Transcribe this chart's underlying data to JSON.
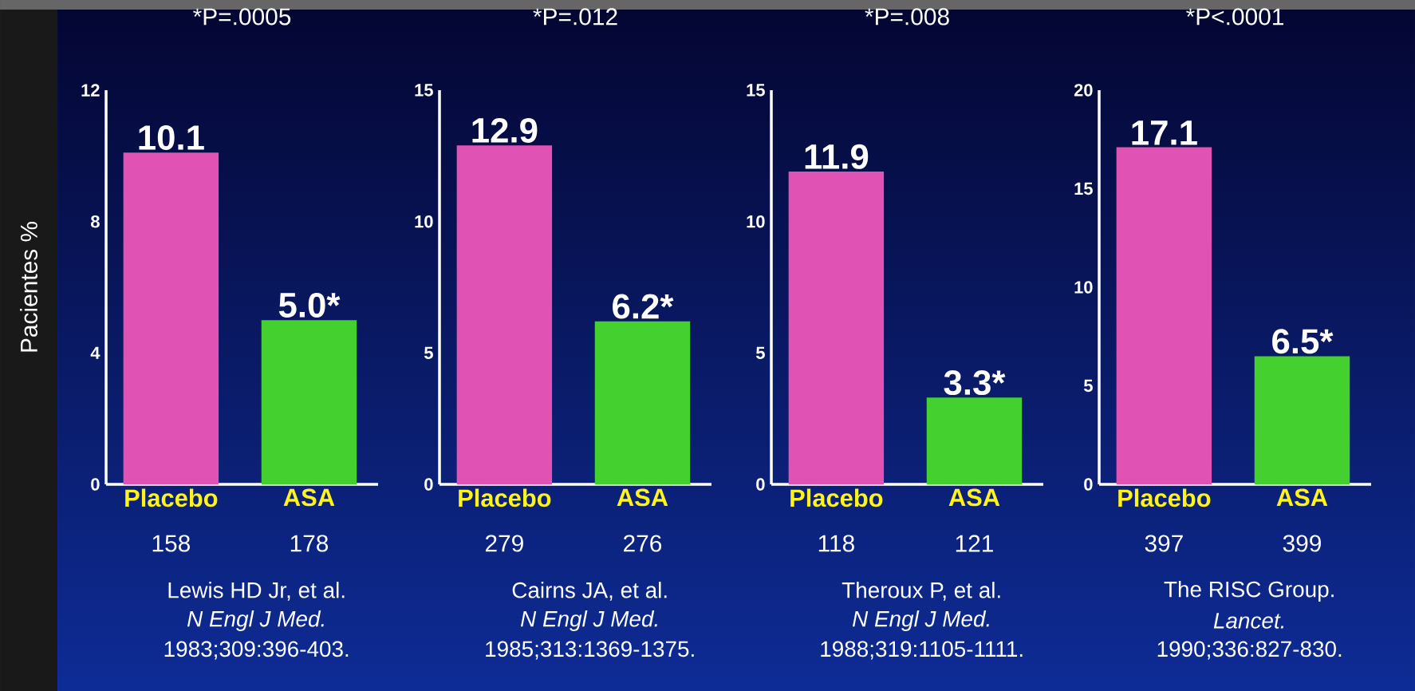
{
  "chart_data": [
    {
      "type": "bar",
      "title": "*P=.0005",
      "ylabel": "Pacientes %",
      "categories": [
        "Placebo",
        "ASA"
      ],
      "values": [
        10.1,
        5.0
      ],
      "colors": [
        "#e052b4",
        "#44d130"
      ],
      "value_labels": [
        "10.1",
        "5.0*"
      ],
      "ylim": [
        0,
        12
      ],
      "yticks": [
        0,
        4,
        8,
        12
      ],
      "annotations": [
        "158",
        "178",
        "Lewis HD Jr, et al.",
        "N Engl J Med.",
        "1983;309:396-403."
      ]
    },
    {
      "type": "bar",
      "title": "*P=.012",
      "categories": [
        "Placebo",
        "ASA"
      ],
      "values": [
        12.9,
        6.2
      ],
      "colors": [
        "#e052b4",
        "#44d130"
      ],
      "value_labels": [
        "12.9",
        "6.2*"
      ],
      "ylim": [
        0,
        15
      ],
      "yticks": [
        0,
        5,
        10,
        15
      ],
      "annotations": [
        "279",
        "276",
        "Cairns JA, et al.",
        "N Engl J Med.",
        "1985;313:1369-1375."
      ]
    },
    {
      "type": "bar",
      "title": "*P=.008",
      "categories": [
        "Placebo",
        "ASA"
      ],
      "values": [
        11.9,
        3.3
      ],
      "colors": [
        "#e052b4",
        "#44d130"
      ],
      "value_labels": [
        "11.9",
        "3.3*"
      ],
      "ylim": [
        0,
        15
      ],
      "yticks": [
        0,
        5,
        10,
        15
      ],
      "annotations": [
        "118",
        "121",
        "Theroux P, et al.",
        "N Engl J Med.",
        "1988;319:1105-1111."
      ]
    },
    {
      "type": "bar",
      "title": "*P<.0001",
      "categories": [
        "Placebo",
        "ASA"
      ],
      "values": [
        17.1,
        6.5
      ],
      "colors": [
        "#e052b4",
        "#44d130"
      ],
      "value_labels": [
        "17.1",
        "6.5*"
      ],
      "ylim": [
        0,
        20
      ],
      "yticks": [
        0,
        5,
        10,
        15,
        20
      ],
      "annotations": [
        "397",
        "399",
        "The RISC Group.",
        "Lancet.",
        "1990;336:827-830."
      ]
    }
  ]
}
